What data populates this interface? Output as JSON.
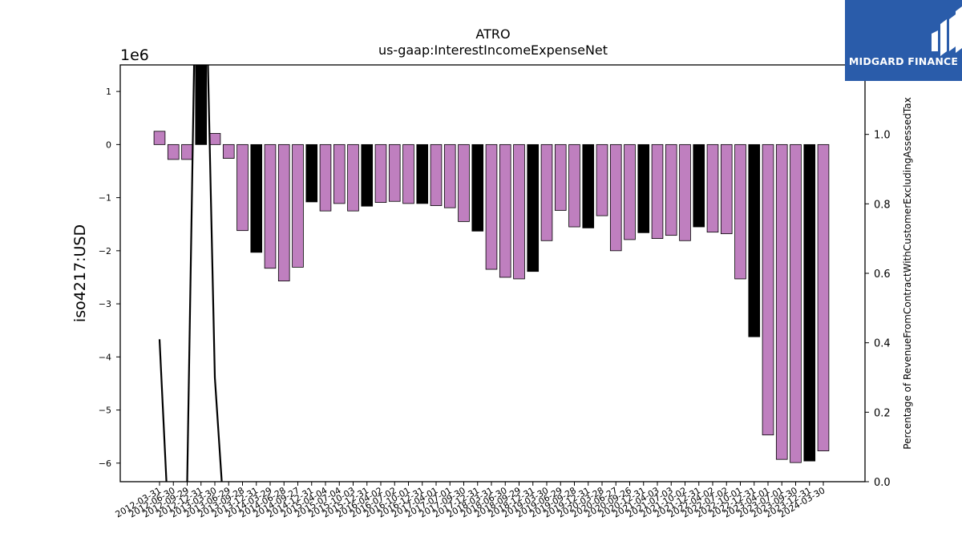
{
  "chart_data": {
    "type": "bar",
    "title": "ATRO",
    "subtitle": "us-gaap:InterestIncomeExpenseNet",
    "ylabel": "iso4217:USD",
    "y2label": "Percentage of RevenueFromContractWithCustomerExcludingAssessedTax",
    "yscale_label": "1e6",
    "ylim": [
      -6.35,
      1.5
    ],
    "y2lim": [
      0.0,
      1.2
    ],
    "yticks": [
      1,
      0,
      -1,
      -2,
      -3,
      -4,
      -5,
      -6
    ],
    "y2ticks": [
      "0.0",
      "0.2",
      "0.4",
      "0.6",
      "0.8",
      "1.0"
    ],
    "grid": false,
    "colors": {
      "quarter": "#bf7fbf",
      "annual": "#000000",
      "line": "#000000"
    },
    "categories": [
      "2012-03-31",
      "2012-06-30",
      "2012-09-29",
      "2012-12-31",
      "2013-03-30",
      "2013-06-29",
      "2013-09-28",
      "2013-12-31",
      "2014-03-29",
      "2014-06-28",
      "2014-09-27",
      "2014-12-31",
      "2015-04-04",
      "2015-07-04",
      "2015-10-03",
      "2015-12-31",
      "2016-04-02",
      "2016-07-02",
      "2016-10-01",
      "2016-12-31",
      "2017-04-01",
      "2017-07-01",
      "2017-09-30",
      "2017-12-31",
      "2018-03-31",
      "2018-06-30",
      "2018-09-29",
      "2018-12-31",
      "2019-03-30",
      "2019-06-29",
      "2019-09-28",
      "2019-12-31",
      "2020-03-28",
      "2020-06-27",
      "2020-09-26",
      "2020-12-31",
      "2021-04-03",
      "2021-07-03",
      "2021-10-02",
      "2021-12-31",
      "2022-04-02",
      "2022-07-02",
      "2022-10-01",
      "2022-12-31",
      "2023-04-01",
      "2023-07-01",
      "2023-09-30",
      "2023-12-31",
      "2024-03-30"
    ],
    "values": [
      0.25,
      -0.28,
      -0.28,
      1.5,
      0.21,
      -0.26,
      -1.62,
      -2.03,
      -2.33,
      -2.57,
      -2.31,
      -1.08,
      -1.25,
      -1.11,
      -1.25,
      -1.16,
      -1.09,
      -1.07,
      -1.11,
      -1.11,
      -1.15,
      -1.19,
      -1.45,
      -1.63,
      -2.35,
      -2.5,
      -2.53,
      -2.39,
      -1.81,
      -1.24,
      -1.55,
      -1.57,
      -1.34,
      -2.0,
      -1.79,
      -1.66,
      -1.77,
      -1.71,
      -1.81,
      -1.55,
      -1.65,
      -1.68,
      -2.53,
      -3.62,
      -5.47,
      -5.93,
      -5.99,
      -5.96,
      -5.77
    ],
    "annual": [
      false,
      false,
      false,
      true,
      false,
      false,
      false,
      true,
      false,
      false,
      false,
      true,
      false,
      false,
      false,
      true,
      false,
      false,
      false,
      true,
      false,
      false,
      false,
      true,
      false,
      false,
      false,
      true,
      false,
      false,
      false,
      true,
      false,
      false,
      false,
      true,
      false,
      false,
      false,
      true,
      false,
      false,
      false,
      true,
      false,
      false,
      false,
      true,
      false
    ],
    "line_series": [
      {
        "points": [
          [
            0,
            0.41
          ],
          [
            0.5,
            0.0
          ]
        ]
      },
      {
        "points": [
          [
            2.0,
            0.0
          ],
          [
            2.5,
            1.2
          ]
        ]
      },
      {
        "points": [
          [
            3.5,
            1.2
          ],
          [
            4.0,
            0.3
          ],
          [
            4.5,
            0.0
          ]
        ]
      }
    ]
  },
  "logo": {
    "name": "MIDGARD FINANCE"
  }
}
